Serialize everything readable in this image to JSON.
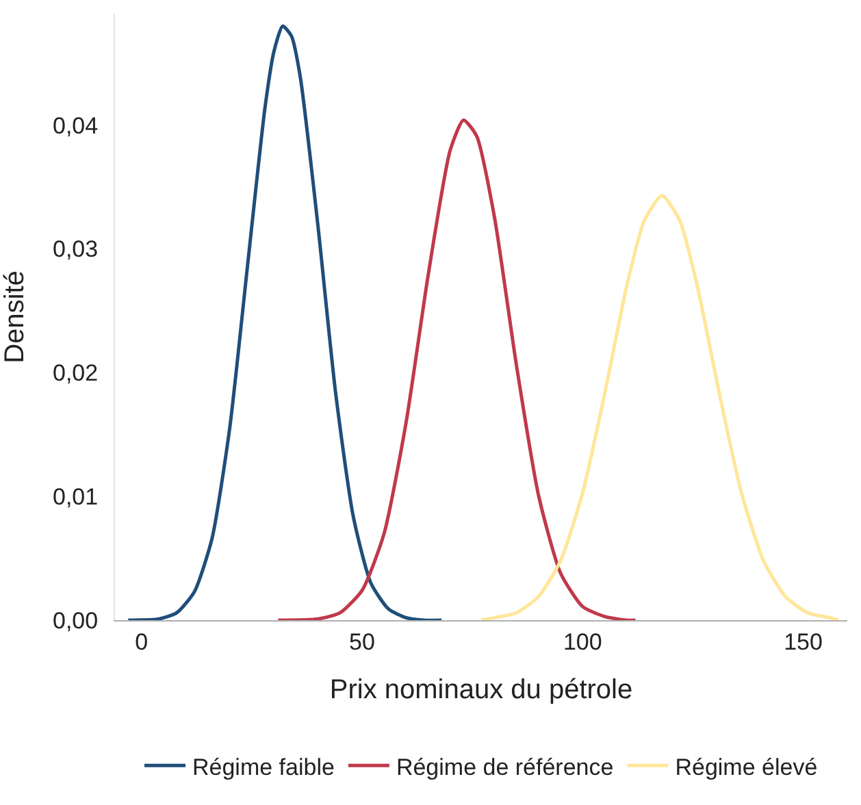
{
  "chart_data": {
    "type": "line",
    "xlabel": "Prix nominaux du pétrole",
    "ylabel": "Densité",
    "xlim": [
      -6,
      160
    ],
    "xticks": [
      0,
      50,
      100,
      150
    ],
    "ylim": [
      0,
      0.049
    ],
    "yticks": [
      {
        "value": 0,
        "label": "0,00"
      },
      {
        "value": 0.01,
        "label": "0,01"
      },
      {
        "value": 0.02,
        "label": "0,02"
      },
      {
        "value": 0.03,
        "label": "0,03"
      },
      {
        "value": 0.04,
        "label": "0,04"
      }
    ],
    "legend": "bottom",
    "marker": "none",
    "line_style": "solid",
    "series": [
      {
        "name": "Régime faible",
        "color": "#1f4e79",
        "x": [
          -3,
          4,
          8,
          12,
          16,
          20,
          24,
          28,
          30,
          32,
          34,
          36,
          40,
          44,
          48,
          52,
          56,
          60,
          64,
          68
        ],
        "values": [
          0,
          0.0001,
          0.0006,
          0.0023,
          0.0066,
          0.0155,
          0.0285,
          0.0414,
          0.0459,
          0.048,
          0.0472,
          0.0439,
          0.0319,
          0.0184,
          0.0084,
          0.003,
          0.0009,
          0.0002,
          0,
          0
        ]
      },
      {
        "name": "Régime de référence",
        "color": "#c0394b",
        "x": [
          31,
          40,
          45,
          50,
          55,
          60,
          65,
          70,
          73,
          76,
          80,
          85,
          90,
          95,
          100,
          105,
          110,
          112
        ],
        "values": [
          0,
          0.0001,
          0.0006,
          0.0024,
          0.007,
          0.016,
          0.0279,
          0.038,
          0.0404,
          0.0391,
          0.0326,
          0.0206,
          0.0101,
          0.0038,
          0.0011,
          0.0003,
          0,
          0
        ]
      },
      {
        "name": "Régime élevé",
        "color": "#ffe699",
        "x": [
          77,
          80,
          85,
          90,
          95,
          100,
          105,
          110,
          114,
          118,
          122,
          126,
          131,
          136,
          141,
          146,
          151,
          156,
          158
        ],
        "values": [
          0,
          0.0002,
          0.0006,
          0.0019,
          0.0048,
          0.0103,
          0.0183,
          0.027,
          0.0323,
          0.0343,
          0.0323,
          0.027,
          0.0183,
          0.0103,
          0.0048,
          0.0019,
          0.0006,
          0.0002,
          0
        ]
      }
    ]
  }
}
